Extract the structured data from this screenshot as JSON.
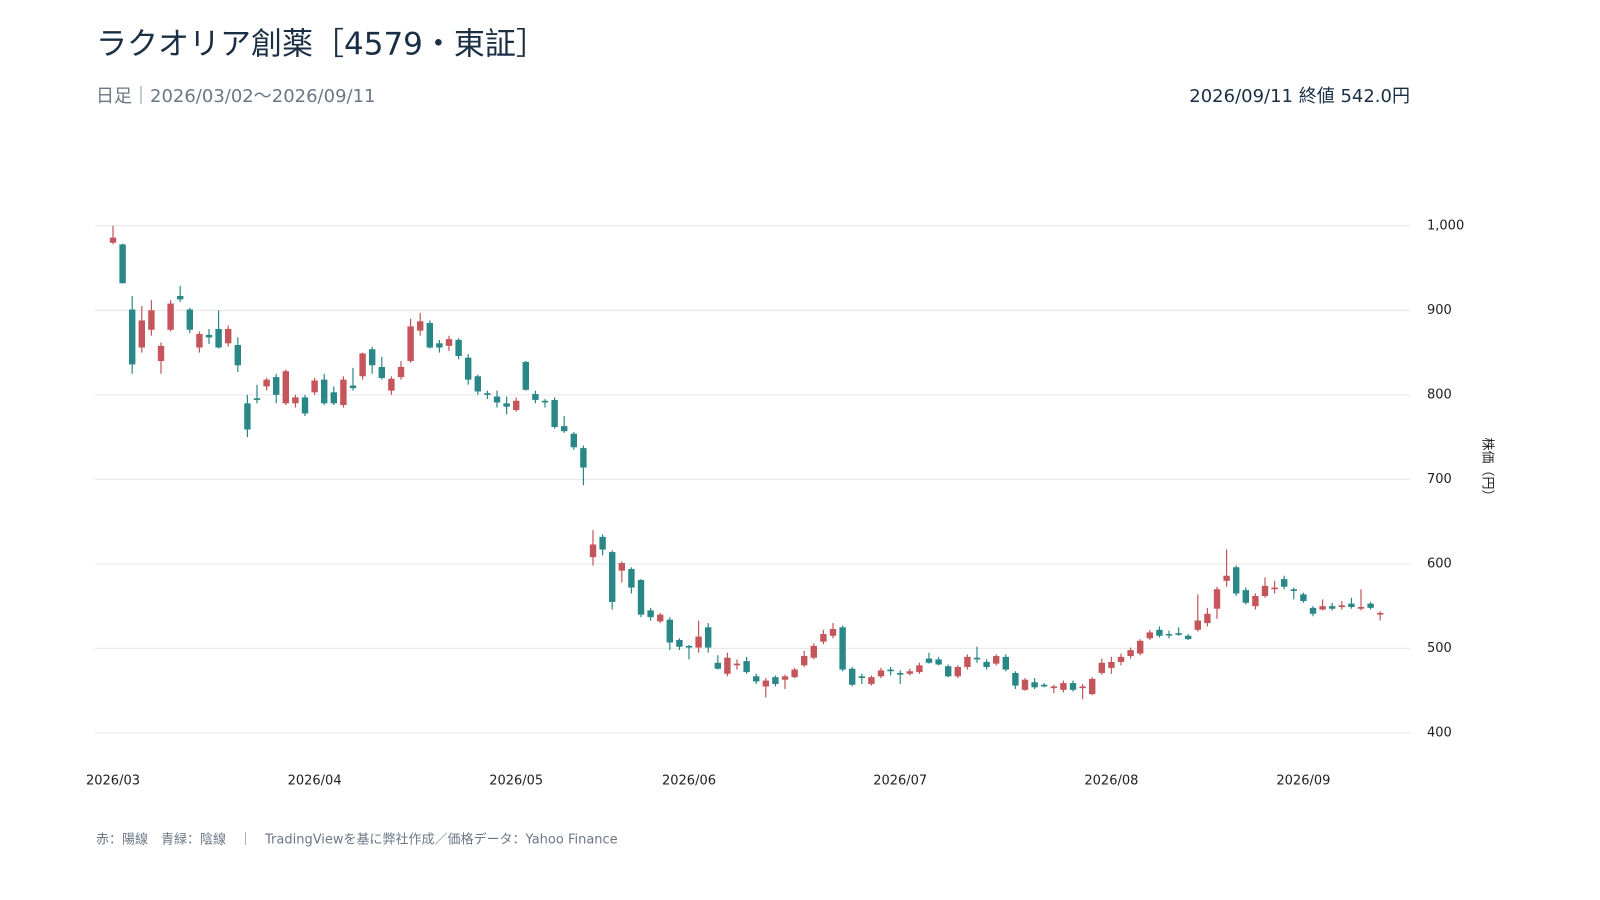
{
  "chart_data": {
    "type": "candlestick",
    "title": "ラクオリア創薬［4579・東証］",
    "subtitle": "日足｜2026/03/02〜2026/09/11",
    "annotation": "2026/09/11 終値 542.0円",
    "y_label": "株価（円）",
    "footnote": "赤：陽線　青緑：陰線　｜　TradingViewを基に弊社作成／価格データ：Yahoo Finance",
    "up_color": "#c4555a",
    "down_color": "#2a8788",
    "grid": true,
    "ylim": [
      368,
      1040
    ],
    "yticks": [
      400,
      500,
      600,
      700,
      800,
      900,
      {
        "value": 1000,
        "label": "1,000"
      }
    ],
    "categories": [
      "2026/03",
      null,
      null,
      null,
      null,
      null,
      null,
      null,
      null,
      null,
      null,
      null,
      null,
      null,
      null,
      null,
      null,
      null,
      null,
      null,
      null,
      "2026/04",
      null,
      null,
      null,
      null,
      null,
      null,
      null,
      null,
      null,
      null,
      null,
      null,
      null,
      null,
      null,
      null,
      null,
      null,
      null,
      null,
      "2026/05",
      null,
      null,
      null,
      null,
      null,
      null,
      null,
      null,
      null,
      null,
      null,
      null,
      null,
      null,
      null,
      null,
      null,
      "2026/06",
      null,
      null,
      null,
      null,
      null,
      null,
      null,
      null,
      null,
      null,
      null,
      null,
      null,
      null,
      null,
      null,
      null,
      null,
      null,
      null,
      null,
      "2026/07",
      null,
      null,
      null,
      null,
      null,
      null,
      null,
      null,
      null,
      null,
      null,
      null,
      null,
      null,
      null,
      null,
      null,
      null,
      null,
      null,
      null,
      "2026/08",
      null,
      null,
      null,
      null,
      null,
      null,
      null,
      null,
      null,
      null,
      null,
      null,
      null,
      null,
      null,
      null,
      null,
      null,
      null,
      "2026/09",
      null,
      null,
      null,
      null,
      null,
      null,
      null,
      null
    ],
    "open": [
      980,
      978,
      901,
      856,
      877,
      840,
      877,
      917,
      901,
      856,
      871,
      878,
      861,
      859,
      790,
      796,
      810,
      821,
      790,
      790,
      797,
      803,
      818,
      803,
      788,
      811,
      822,
      854,
      833,
      805,
      821,
      840,
      876,
      885,
      861,
      858,
      865,
      844,
      822,
      802,
      798,
      790,
      782,
      839,
      801,
      793,
      794,
      763,
      754,
      737,
      608,
      632,
      614,
      592,
      594,
      581,
      545,
      532,
      534,
      510,
      503,
      501,
      525,
      483,
      470,
      480,
      485,
      467,
      455,
      466,
      463,
      466,
      480,
      489,
      508,
      515,
      525,
      476,
      467,
      458,
      467,
      475,
      471,
      470,
      472,
      488,
      487,
      479,
      467,
      478,
      489,
      484,
      482,
      490,
      471,
      451,
      460,
      457,
      453,
      451,
      459,
      453,
      446,
      471,
      477,
      484,
      491,
      494,
      512,
      522,
      517,
      518,
      515,
      522,
      530,
      547,
      580,
      596,
      569,
      550,
      562,
      570,
      582,
      570,
      564,
      548,
      546,
      550,
      549,
      553,
      547,
      553,
      540
    ],
    "high": [
      1000,
      979,
      917,
      905,
      912,
      862,
      912,
      929,
      903,
      875,
      878,
      900,
      882,
      868,
      800,
      812,
      820,
      825,
      830,
      800,
      800,
      820,
      825,
      810,
      822,
      832,
      850,
      857,
      845,
      822,
      840,
      890,
      897,
      888,
      865,
      870,
      867,
      848,
      824,
      805,
      805,
      798,
      797,
      840,
      805,
      795,
      797,
      775,
      756,
      740,
      640,
      635,
      616,
      603,
      596,
      582,
      548,
      542,
      537,
      512,
      504,
      533,
      530,
      492,
      495,
      487,
      490,
      470,
      465,
      468,
      469,
      477,
      497,
      506,
      522,
      530,
      527,
      478,
      470,
      468,
      477,
      478,
      474,
      476,
      483,
      495,
      490,
      481,
      480,
      493,
      502,
      487,
      493,
      493,
      473,
      465,
      465,
      459,
      457,
      462,
      462,
      458,
      466,
      488,
      490,
      494,
      501,
      511,
      522,
      526,
      521,
      525,
      517,
      564,
      548,
      573,
      617,
      598,
      572,
      565,
      584,
      580,
      586,
      572,
      566,
      550,
      558,
      554,
      556,
      560,
      570,
      555,
      544
    ],
    "low": [
      978,
      932,
      825,
      850,
      870,
      825,
      875,
      910,
      873,
      850,
      860,
      855,
      857,
      827,
      750,
      790,
      805,
      790,
      788,
      785,
      775,
      800,
      788,
      788,
      785,
      805,
      818,
      825,
      818,
      800,
      818,
      838,
      870,
      855,
      850,
      852,
      842,
      812,
      800,
      795,
      785,
      777,
      780,
      805,
      790,
      785,
      760,
      755,
      735,
      693,
      598,
      610,
      546,
      578,
      565,
      537,
      533,
      530,
      498,
      498,
      487,
      495,
      495,
      475,
      467,
      475,
      470,
      458,
      442,
      455,
      452,
      465,
      478,
      487,
      505,
      512,
      473,
      455,
      458,
      456,
      465,
      468,
      458,
      468,
      470,
      482,
      480,
      466,
      465,
      475,
      483,
      475,
      480,
      473,
      452,
      450,
      452,
      454,
      447,
      448,
      449,
      440,
      445,
      469,
      470,
      480,
      488,
      492,
      510,
      513,
      512,
      515,
      510,
      520,
      526,
      535,
      573,
      562,
      552,
      546,
      560,
      565,
      570,
      558,
      554,
      538,
      545,
      545,
      546,
      547,
      545,
      546,
      533
    ],
    "close": [
      986,
      932,
      836,
      888,
      900,
      858,
      908,
      913,
      877,
      872,
      868,
      856,
      878,
      835,
      759,
      794,
      818,
      800,
      828,
      797,
      778,
      817,
      790,
      790,
      818,
      808,
      849,
      835,
      820,
      819,
      833,
      881,
      887,
      856,
      856,
      866,
      846,
      818,
      804,
      800,
      791,
      786,
      793,
      806,
      794,
      791,
      762,
      757,
      738,
      714,
      623,
      617,
      555,
      601,
      572,
      540,
      537,
      540,
      507,
      502,
      501,
      514,
      501,
      476,
      489,
      482,
      472,
      461,
      462,
      458,
      467,
      475,
      491,
      503,
      517,
      523,
      475,
      457,
      465,
      466,
      474,
      473,
      469,
      473,
      480,
      483,
      481,
      467,
      478,
      490,
      487,
      478,
      491,
      475,
      456,
      463,
      454,
      455,
      455,
      459,
      451,
      455,
      464,
      483,
      484,
      490,
      498,
      509,
      519,
      515,
      516,
      516,
      511,
      533,
      541,
      570,
      586,
      565,
      554,
      562,
      574,
      572,
      573,
      568,
      556,
      541,
      550,
      547,
      551,
      549,
      549,
      548,
      542
    ]
  }
}
